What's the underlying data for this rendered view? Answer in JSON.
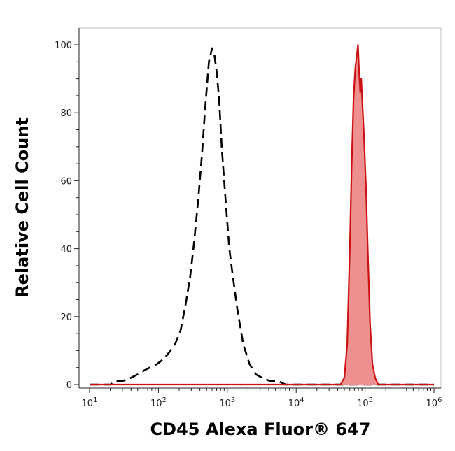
{
  "chart_data": {
    "type": "area",
    "xlabel": "CD45 Alexa Fluor® 647",
    "ylabel": "Relative Cell Count",
    "x_scale": "log",
    "xlim": [
      10,
      1000000
    ],
    "ylim": [
      0,
      100
    ],
    "x_ticks": [
      {
        "value": 10,
        "base": "10",
        "exp": "1"
      },
      {
        "value": 100,
        "base": "10",
        "exp": "2"
      },
      {
        "value": 1000,
        "base": "10",
        "exp": "3"
      },
      {
        "value": 10000,
        "base": "10",
        "exp": "4"
      },
      {
        "value": 100000,
        "base": "10",
        "exp": "5"
      },
      {
        "value": 1000000,
        "base": "10",
        "exp": "6"
      }
    ],
    "y_ticks": [
      0,
      20,
      40,
      60,
      80,
      100
    ],
    "grid": false,
    "legend": "none",
    "series": [
      {
        "style": "dashed",
        "color": "#000000",
        "fill": "none",
        "points": [
          [
            10,
            0
          ],
          [
            20,
            0
          ],
          [
            24,
            1
          ],
          [
            30,
            1
          ],
          [
            40,
            2
          ],
          [
            50,
            3
          ],
          [
            60,
            4
          ],
          [
            75,
            5
          ],
          [
            95,
            6
          ],
          [
            110,
            7
          ],
          [
            125,
            8
          ],
          [
            150,
            10
          ],
          [
            175,
            12
          ],
          [
            210,
            16
          ],
          [
            250,
            24
          ],
          [
            290,
            32
          ],
          [
            330,
            42
          ],
          [
            380,
            55
          ],
          [
            430,
            68
          ],
          [
            480,
            82
          ],
          [
            540,
            95
          ],
          [
            600,
            99
          ],
          [
            650,
            97
          ],
          [
            700,
            92
          ],
          [
            760,
            84
          ],
          [
            830,
            70
          ],
          [
            900,
            60
          ],
          [
            980,
            50
          ],
          [
            1070,
            40
          ],
          [
            1200,
            32
          ],
          [
            1400,
            22
          ],
          [
            1700,
            12
          ],
          [
            2100,
            6
          ],
          [
            2600,
            3
          ],
          [
            3200,
            2
          ],
          [
            4200,
            1
          ],
          [
            5500,
            1
          ],
          [
            7000,
            0
          ],
          [
            1000000,
            0
          ]
        ]
      },
      {
        "style": "solid",
        "color": "#cc1111",
        "fill": "#ee9090",
        "points": [
          [
            10,
            0
          ],
          [
            40000,
            0
          ],
          [
            44000,
            0
          ],
          [
            50000,
            2
          ],
          [
            55000,
            12
          ],
          [
            60000,
            40
          ],
          [
            64000,
            65
          ],
          [
            68000,
            84
          ],
          [
            72000,
            93
          ],
          [
            76000,
            97
          ],
          [
            79000,
            100
          ],
          [
            82000,
            92
          ],
          [
            85000,
            86
          ],
          [
            88000,
            90
          ],
          [
            92000,
            82
          ],
          [
            97000,
            72
          ],
          [
            103000,
            58
          ],
          [
            110000,
            38
          ],
          [
            118000,
            18
          ],
          [
            128000,
            6
          ],
          [
            140000,
            2
          ],
          [
            155000,
            0
          ],
          [
            1000000,
            0
          ]
        ]
      }
    ]
  },
  "colors": {
    "frame": "#bfbfbf",
    "axis_text": "#222222"
  }
}
